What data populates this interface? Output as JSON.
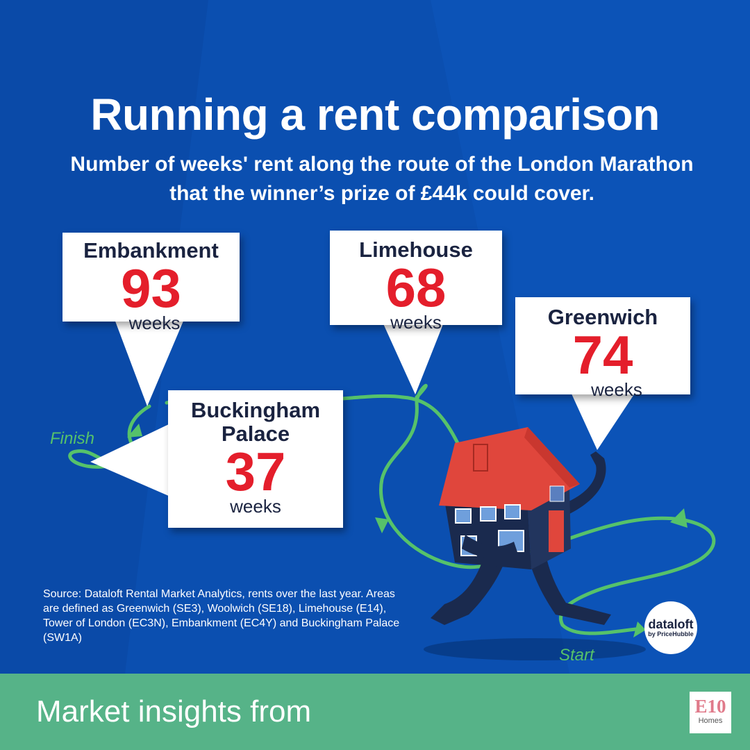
{
  "title": "Running a rent comparison",
  "subtitle": "Number of weeks' rent along the route of the London Marathon that the winner’s prize of £44k could cover.",
  "callouts": [
    {
      "place": "Embankment",
      "weeks": "93",
      "unit": "weeks"
    },
    {
      "place": "Limehouse",
      "weeks": "68",
      "unit": "weeks"
    },
    {
      "place": "Greenwich",
      "weeks": "74",
      "unit": "weeks"
    },
    {
      "place": "Buckingham Palace",
      "weeks": "37",
      "unit": "weeks"
    }
  ],
  "route": {
    "finish_label": "Finish",
    "start_label": "Start"
  },
  "source": "Source: Dataloft Rental Market Analytics, rents over  the last year. Areas are defined as Greenwich (SE3), Woolwich (SE18), Limehouse (E14), Tower of London (EC3N), Embankment (EC4Y) and Buckingham Palace (SW1A)",
  "dataloft_logo": {
    "name": "dataloft",
    "sub": "by PriceHubble"
  },
  "footer": {
    "text": "Market insights from",
    "logo_mark": "E10",
    "logo_sub": "Homes"
  },
  "colors": {
    "background": "#0b4fb0",
    "route": "#56c26a",
    "number": "#e41e2b",
    "house_roof": "#e0463c",
    "house_body": "#1a2a4e",
    "footer": "#56b388"
  },
  "icons": {
    "house": "running-house-icon",
    "route": "marathon-route-icon"
  }
}
